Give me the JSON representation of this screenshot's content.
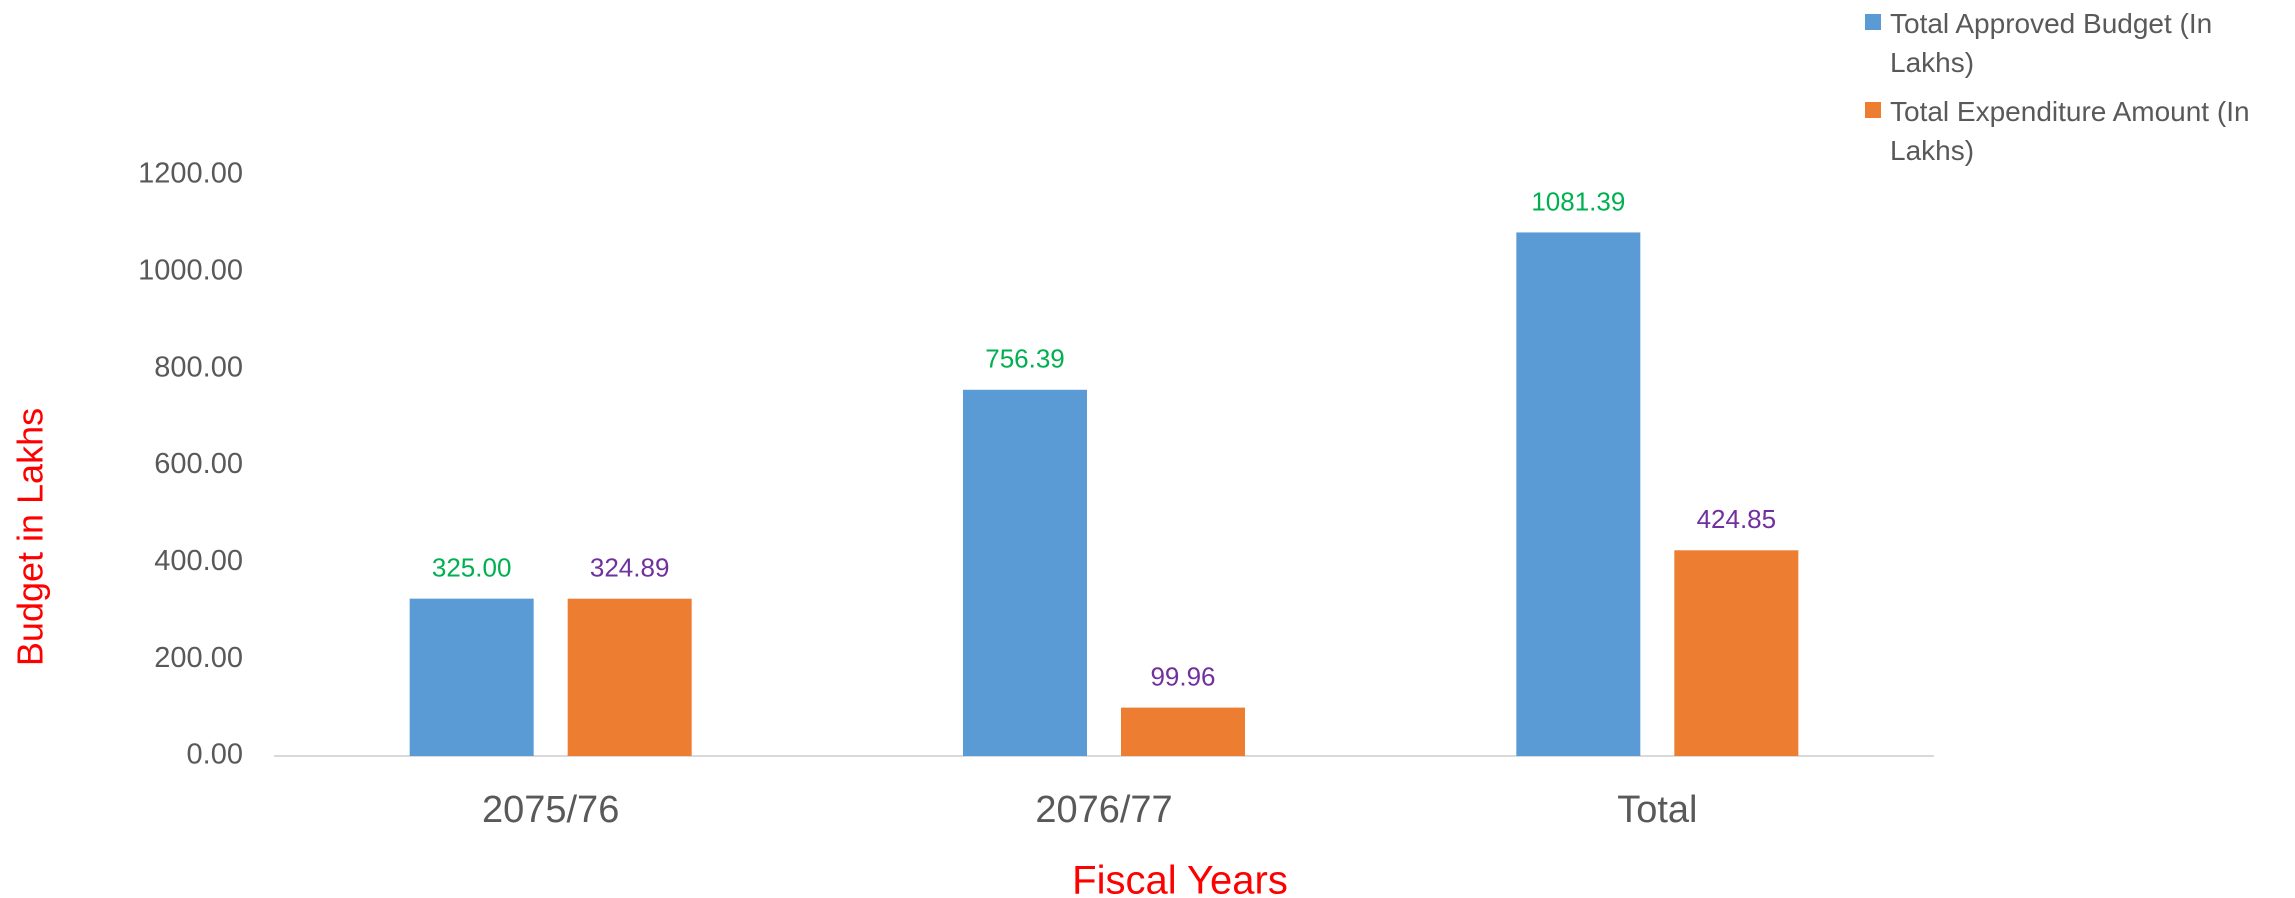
{
  "chart_data": {
    "type": "bar",
    "categories": [
      "2075/76",
      "2076/77",
      "Total"
    ],
    "series": [
      {
        "name": "Total Approved Budget (In Lakhs)",
        "color": "#5b9bd5",
        "label_color": "#00b050",
        "values": [
          325.0,
          756.39,
          1081.39
        ],
        "value_labels": [
          "325.00",
          "756.39",
          "1081.39"
        ]
      },
      {
        "name": "Total Expenditure Amount (In Lakhs)",
        "color": "#ed7d31",
        "label_color": "#7030a0",
        "values": [
          324.89,
          99.96,
          424.85
        ],
        "value_labels": [
          "324.89",
          "99.96",
          "424.85"
        ]
      }
    ],
    "ylim": [
      0,
      1200
    ],
    "yticks": [
      {
        "value": 0,
        "label": "0.00"
      },
      {
        "value": 200,
        "label": "200.00"
      },
      {
        "value": 400,
        "label": "400.00"
      },
      {
        "value": 600,
        "label": "600.00"
      },
      {
        "value": 800,
        "label": "800.00"
      },
      {
        "value": 1000,
        "label": "1000.00"
      },
      {
        "value": 1200,
        "label": "1200.00"
      }
    ],
    "x_label": "Fiscal Years",
    "y_label": "Budget in Lakhs",
    "legend": "top-right",
    "grid": false
  }
}
